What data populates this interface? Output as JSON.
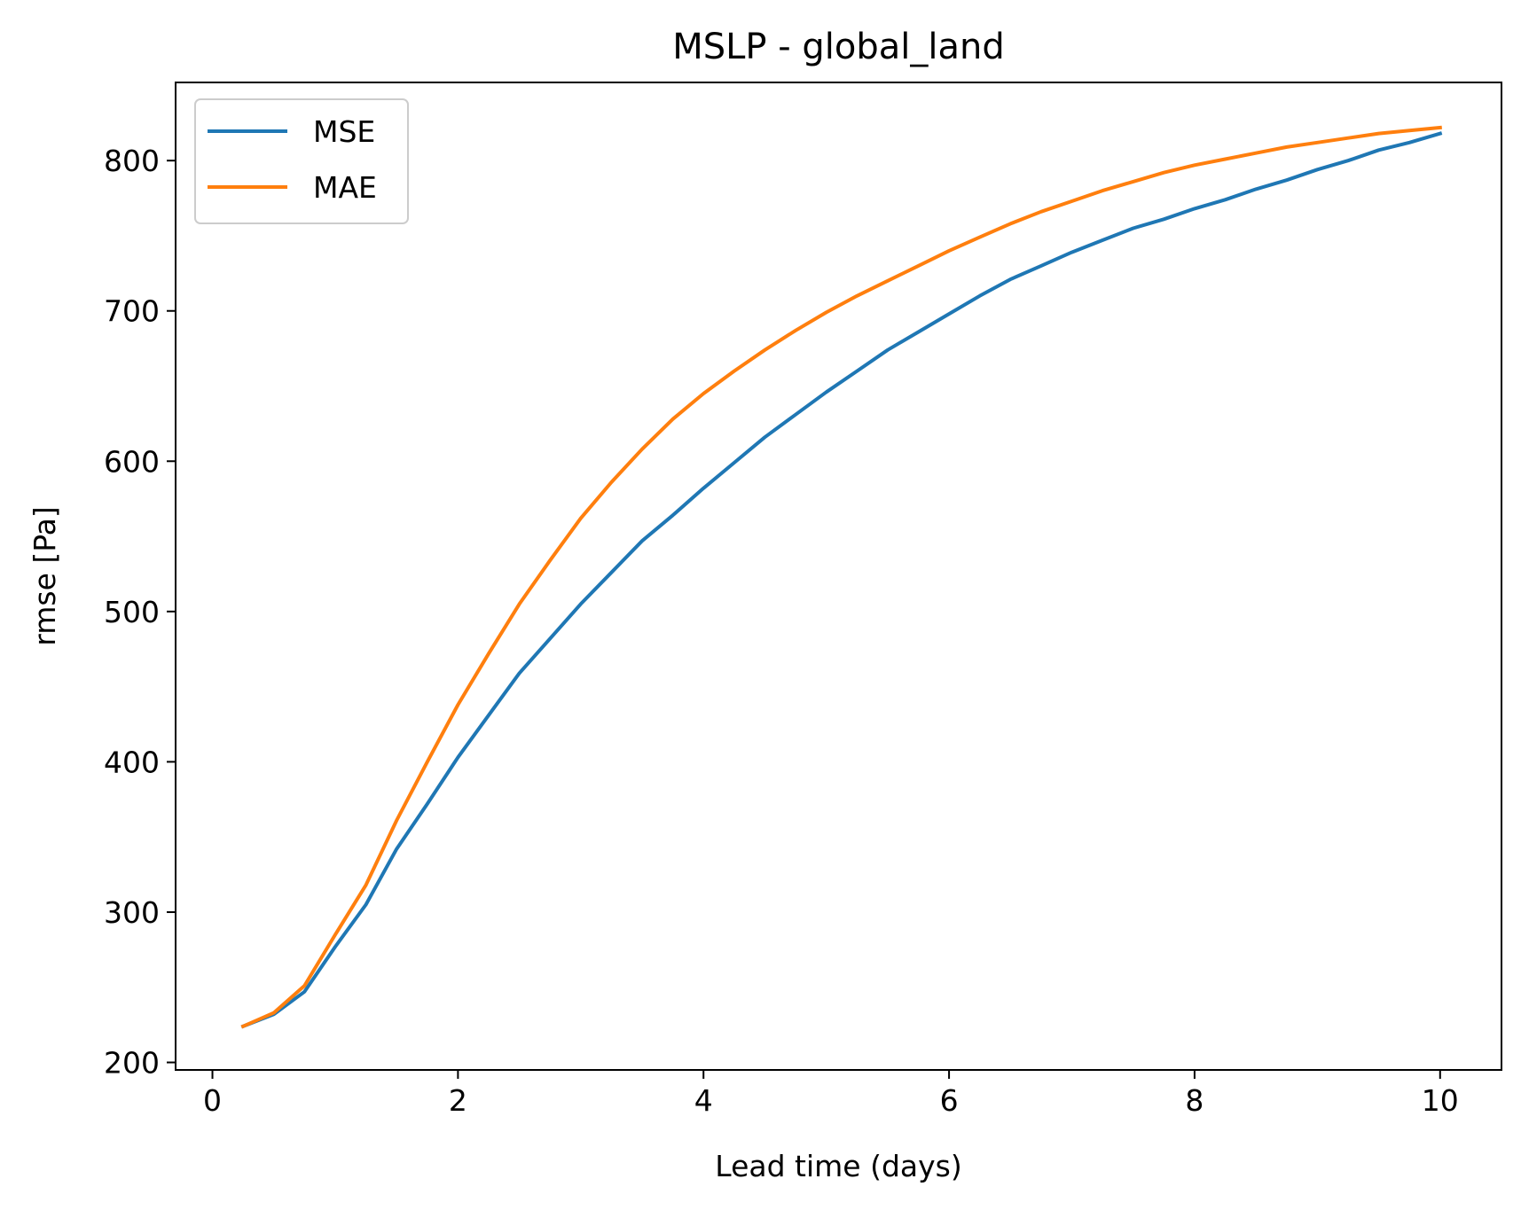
{
  "chart_data": {
    "type": "line",
    "title": "MSLP - global_land",
    "xlabel": "Lead time (days)",
    "ylabel": "rmse [Pa]",
    "xlim": [
      -0.3,
      10.5
    ],
    "ylim": [
      195,
      852
    ],
    "xticks": [
      0,
      2,
      4,
      6,
      8,
      10
    ],
    "yticks": [
      200,
      300,
      400,
      500,
      600,
      700,
      800
    ],
    "grid": false,
    "legend_position": "upper-left",
    "x": [
      0.25,
      0.5,
      0.75,
      1.0,
      1.25,
      1.5,
      1.75,
      2.0,
      2.25,
      2.5,
      2.75,
      3.0,
      3.25,
      3.5,
      3.75,
      4.0,
      4.25,
      4.5,
      4.75,
      5.0,
      5.25,
      5.5,
      5.75,
      6.0,
      6.25,
      6.5,
      6.75,
      7.0,
      7.25,
      7.5,
      7.75,
      8.0,
      8.25,
      8.5,
      8.75,
      9.0,
      9.25,
      9.5,
      9.75,
      10.0
    ],
    "series": [
      {
        "name": "MSE",
        "color": "#1f77b4",
        "values": [
          224,
          232,
          247,
          277,
          305,
          342,
          372,
          403,
          431,
          459,
          482,
          505,
          526,
          547,
          564,
          582,
          599,
          616,
          631,
          646,
          660,
          674,
          686,
          698,
          710,
          721,
          730,
          739,
          747,
          755,
          761,
          768,
          774,
          781,
          787,
          794,
          800,
          807,
          812,
          818
        ]
      },
      {
        "name": "MAE",
        "color": "#ff7f0e",
        "values": [
          224,
          233,
          251,
          285,
          318,
          361,
          400,
          438,
          472,
          505,
          534,
          562,
          586,
          608,
          628,
          645,
          660,
          674,
          687,
          699,
          710,
          720,
          730,
          740,
          749,
          758,
          766,
          773,
          780,
          786,
          792,
          797,
          801,
          805,
          809,
          812,
          815,
          818,
          820,
          822
        ]
      }
    ]
  }
}
